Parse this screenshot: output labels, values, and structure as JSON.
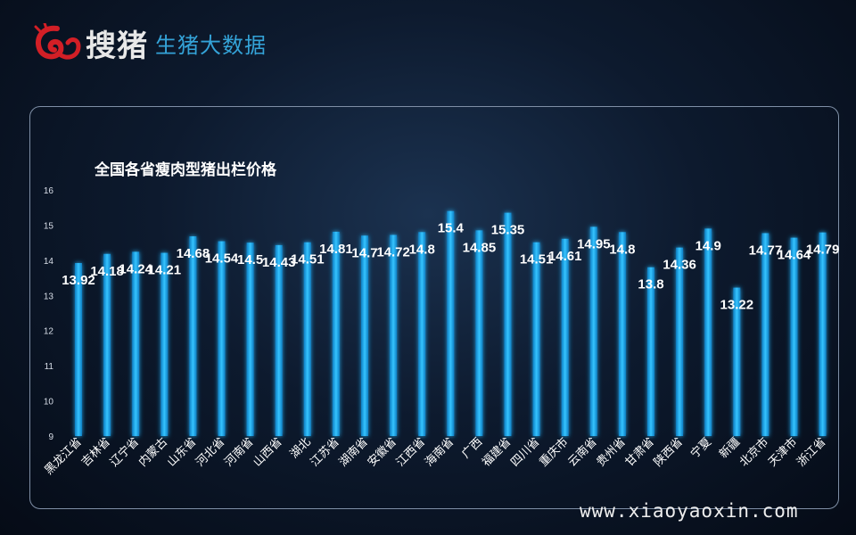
{
  "brand": {
    "logo_text": "搜猪",
    "subtitle": "生猪大数据",
    "logo_icon": "red-swirl-pig-logo"
  },
  "watermark": "www.xiaoyaoxin.com",
  "chart_data": {
    "type": "bar",
    "title": "全国各省瘦肉型猪出栏价格",
    "xlabel": "",
    "ylabel": "",
    "ylim": [
      9,
      16
    ],
    "yticks": [
      9,
      10,
      11,
      12,
      13,
      14,
      15,
      16
    ],
    "grid": false,
    "bar_color": "#1ea9ef",
    "categories": [
      "黑龙江省",
      "吉林省",
      "辽宁省",
      "内蒙古",
      "山东省",
      "河北省",
      "河南省",
      "山西省",
      "湖北",
      "江苏省",
      "湖南省",
      "安徽省",
      "江西省",
      "海南省",
      "广西",
      "福建省",
      "四川省",
      "重庆市",
      "云南省",
      "贵州省",
      "甘肃省",
      "陕西省",
      "宁夏",
      "新疆",
      "北京市",
      "天津市",
      "浙江省"
    ],
    "values": [
      13.92,
      14.18,
      14.24,
      14.21,
      14.68,
      14.54,
      14.5,
      14.43,
      14.51,
      14.81,
      14.7,
      14.72,
      14.8,
      15.4,
      14.85,
      15.35,
      14.51,
      14.61,
      14.95,
      14.8,
      13.8,
      14.36,
      14.9,
      13.22,
      14.77,
      14.64,
      14.79
    ],
    "labels": [
      "13.92",
      "14.18",
      "14.24",
      "14.21",
      "14.68",
      "14.54",
      "14.5",
      "14.43",
      "14.51",
      "14.81",
      "14.7",
      "14.72",
      "14.8",
      "15.4",
      "14.85",
      "15.35",
      "14.51",
      "14.61",
      "14.95",
      "14.8",
      "13.8",
      "14.36",
      "14.9",
      "13.22",
      "14.77",
      "14.64",
      "14.79"
    ]
  }
}
